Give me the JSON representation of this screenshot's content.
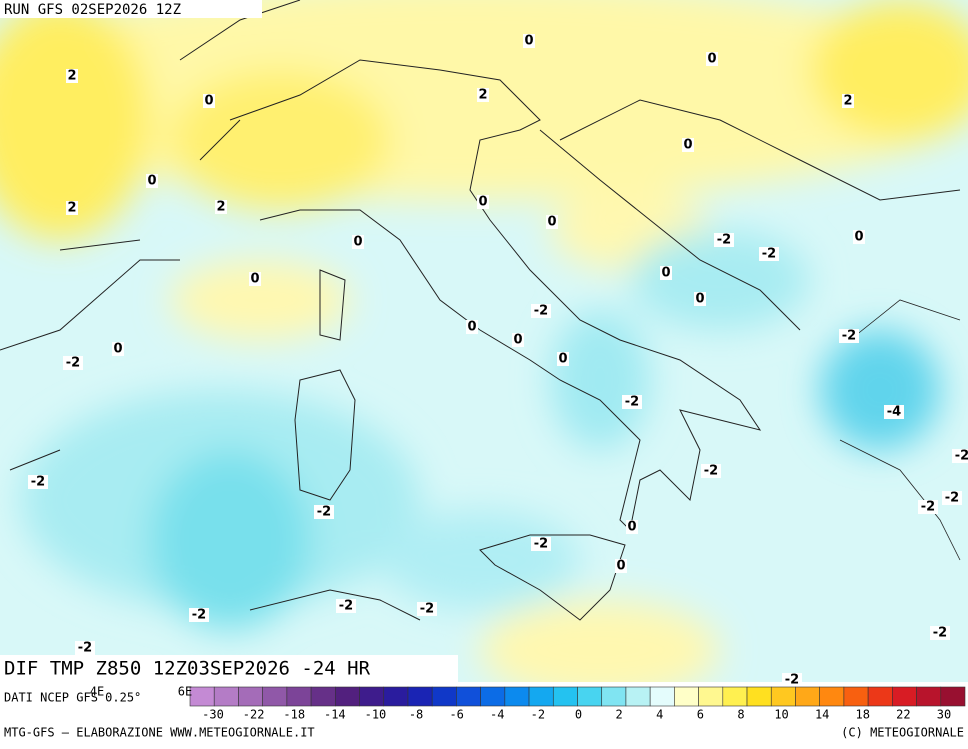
{
  "header": {
    "run": "RUN GFS 02SEP2026 12Z"
  },
  "map": {
    "title": "DIF TMP Z850 12Z03SEP2026 -24 HR",
    "contour_labels": [
      2,
      0,
      0,
      0,
      2,
      2,
      0,
      0,
      2,
      2,
      0,
      0,
      -2,
      -2,
      0,
      0,
      0,
      0,
      0,
      -2,
      0,
      0,
      -2,
      0,
      -2,
      0,
      -2,
      -4,
      -2,
      -2,
      -2,
      -2,
      -2,
      0,
      -2,
      0,
      -2,
      -2,
      -2,
      -2,
      -2,
      -2,
      -2
    ],
    "lon_labels": [
      "4E",
      "6E"
    ]
  },
  "colorbar": {
    "source": "DATI NCEP GFS 0.25°",
    "ticks": [
      -30,
      -22,
      -18,
      -14,
      -10,
      -8,
      -6,
      -4,
      -2,
      0,
      2,
      4,
      6,
      8,
      10,
      14,
      18,
      22,
      30
    ],
    "colors": [
      "#c48ad4",
      "#b47cc6",
      "#a46cb8",
      "#9058a8",
      "#7c4498",
      "#663088",
      "#52207e",
      "#3e1c8c",
      "#2a1c9e",
      "#1a24b4",
      "#1038c8",
      "#1050da",
      "#0c6ce6",
      "#0c8aee",
      "#14a8f0",
      "#24c2f0",
      "#48d4f0",
      "#80e4f2",
      "#b8f2f4",
      "#e4fcfc",
      "#ffffc8",
      "#fff890",
      "#fff050",
      "#ffe020",
      "#ffc820",
      "#ffa818",
      "#ff8810",
      "#f86010",
      "#ec3818",
      "#d81c24",
      "#b8142c",
      "#981030"
    ]
  },
  "footer": {
    "left": "MTG-GFS – ELABORAZIONE WWW.METEOGIORNALE.IT",
    "right": "(C) METEOGIORNALE"
  }
}
